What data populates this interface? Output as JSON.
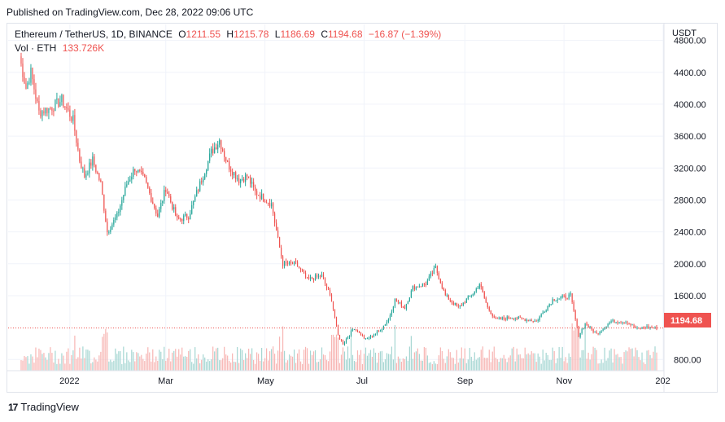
{
  "published": "Published on TradingView.com, Dec 28, 2022 09:06 UTC",
  "legend": {
    "symbol": "Ethereum / TetherUS, 1D, BINANCE",
    "o_label": "O",
    "o_value": "1211.55",
    "h_label": "H",
    "h_value": "1215.78",
    "l_label": "L",
    "l_value": "1186.69",
    "c_label": "C",
    "c_value": "1194.68",
    "change": "−16.87 (−1.39%)",
    "vol_label": "Vol · ETH",
    "vol_value": "133.726K"
  },
  "footer": {
    "logo_icon": "tradingview-logo-icon",
    "brand": "TradingView"
  },
  "colors": {
    "up": "#26a69a",
    "down": "#ef5350",
    "up_vol": "#a5d6d2",
    "down_vol": "#f7b5b3",
    "grid": "#f0f3fa"
  },
  "chart_data": {
    "type": "candlestick",
    "currency": "USDT",
    "y_ticks": [
      "4800.00",
      "4400.00",
      "4000.00",
      "3600.00",
      "3200.00",
      "2800.00",
      "2400.00",
      "2000.00",
      "1600.00",
      "800.00"
    ],
    "x_ticks": [
      "2022",
      "Mar",
      "May",
      "Jul",
      "Sep",
      "Nov",
      "202"
    ],
    "last_price": "1194.68",
    "ylim": [
      660,
      5000
    ],
    "price_path": [
      [
        "2021-12-01",
        4600
      ],
      [
        "2021-12-05",
        4200
      ],
      [
        "2021-12-08",
        4400
      ],
      [
        "2021-12-13",
        3900
      ],
      [
        "2021-12-20",
        3950
      ],
      [
        "2021-12-27",
        4050
      ],
      [
        "2022-01-03",
        3800
      ],
      [
        "2022-01-07",
        3300
      ],
      [
        "2022-01-10",
        3100
      ],
      [
        "2022-01-15",
        3300
      ],
      [
        "2022-01-20",
        3000
      ],
      [
        "2022-01-24",
        2400
      ],
      [
        "2022-01-30",
        2600
      ],
      [
        "2022-02-05",
        3000
      ],
      [
        "2022-02-10",
        3200
      ],
      [
        "2022-02-16",
        3050
      ],
      [
        "2022-02-24",
        2600
      ],
      [
        "2022-03-01",
        2950
      ],
      [
        "2022-03-08",
        2550
      ],
      [
        "2022-03-15",
        2600
      ],
      [
        "2022-03-22",
        3000
      ],
      [
        "2022-03-29",
        3400
      ],
      [
        "2022-04-03",
        3550
      ],
      [
        "2022-04-08",
        3250
      ],
      [
        "2022-04-15",
        3050
      ],
      [
        "2022-04-20",
        3100
      ],
      [
        "2022-04-25",
        2900
      ],
      [
        "2022-05-05",
        2750
      ],
      [
        "2022-05-09",
        2300
      ],
      [
        "2022-05-12",
        2000
      ],
      [
        "2022-05-20",
        2000
      ],
      [
        "2022-05-27",
        1800
      ],
      [
        "2022-06-05",
        1850
      ],
      [
        "2022-06-11",
        1550
      ],
      [
        "2022-06-15",
        1100
      ],
      [
        "2022-06-18",
        1000
      ],
      [
        "2022-06-25",
        1200
      ],
      [
        "2022-07-02",
        1050
      ],
      [
        "2022-07-10",
        1150
      ],
      [
        "2022-07-16",
        1300
      ],
      [
        "2022-07-20",
        1550
      ],
      [
        "2022-07-26",
        1450
      ],
      [
        "2022-07-31",
        1700
      ],
      [
        "2022-08-08",
        1750
      ],
      [
        "2022-08-14",
        1950
      ],
      [
        "2022-08-20",
        1600
      ],
      [
        "2022-08-28",
        1450
      ],
      [
        "2022-09-07",
        1650
      ],
      [
        "2022-09-10",
        1750
      ],
      [
        "2022-09-15",
        1450
      ],
      [
        "2022-09-20",
        1300
      ],
      [
        "2022-09-30",
        1330
      ],
      [
        "2022-10-15",
        1280
      ],
      [
        "2022-10-25",
        1550
      ],
      [
        "2022-11-05",
        1600
      ],
      [
        "2022-11-08",
        1300
      ],
      [
        "2022-11-10",
        1100
      ],
      [
        "2022-11-14",
        1250
      ],
      [
        "2022-11-21",
        1120
      ],
      [
        "2022-11-30",
        1280
      ],
      [
        "2022-12-10",
        1270
      ],
      [
        "2022-12-16",
        1180
      ],
      [
        "2022-12-21",
        1210
      ],
      [
        "2022-12-28",
        1194.68
      ]
    ]
  }
}
